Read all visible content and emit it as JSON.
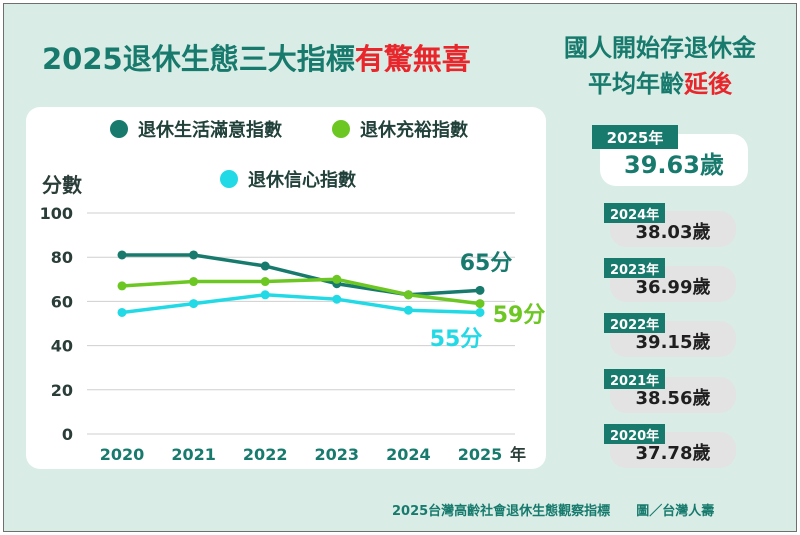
{
  "title": {
    "main": "2025退休生態三大指標",
    "highlight": "有驚無喜"
  },
  "right_title": {
    "line1": "國人開始存退休金",
    "line2_main": "平均年齡",
    "line2_highlight": "延後"
  },
  "colors": {
    "background": "#d9ede6",
    "brand": "#177a6d",
    "highlight": "#e8262b",
    "series1": "#177a6d",
    "series2": "#6cc723",
    "series3": "#22d9e6"
  },
  "chart_data": {
    "type": "line",
    "ylabel": "分數",
    "xunit": "年",
    "x": [
      "2020",
      "2021",
      "2022",
      "2023",
      "2024",
      "2025"
    ],
    "ylim": [
      0,
      100
    ],
    "yticks": [
      "100",
      "80",
      "60",
      "40",
      "20",
      "0"
    ],
    "series": [
      {
        "name": "退休生活滿意指數",
        "color": "#177a6d",
        "values": [
          81,
          81,
          76,
          68,
          63,
          65
        ],
        "end_label": "65分"
      },
      {
        "name": "退休充裕指數",
        "color": "#6cc723",
        "values": [
          67,
          69,
          69,
          70,
          63,
          59
        ],
        "end_label": "59分"
      },
      {
        "name": "退休信心指數",
        "color": "#22d9e6",
        "values": [
          55,
          59,
          63,
          61,
          56,
          55
        ],
        "end_label": "55分"
      }
    ]
  },
  "ages": {
    "current": {
      "year": "2025年",
      "age": "39.63歲"
    },
    "history": [
      {
        "year": "2024年",
        "age": "38.03歲"
      },
      {
        "year": "2023年",
        "age": "36.99歲"
      },
      {
        "year": "2022年",
        "age": "39.15歲"
      },
      {
        "year": "2021年",
        "age": "38.56歲"
      },
      {
        "year": "2020年",
        "age": "37.78歲"
      }
    ]
  },
  "footer": {
    "source": "2025台灣高齡社會退休生態觀察指標",
    "credit": "圖／台灣人壽"
  }
}
